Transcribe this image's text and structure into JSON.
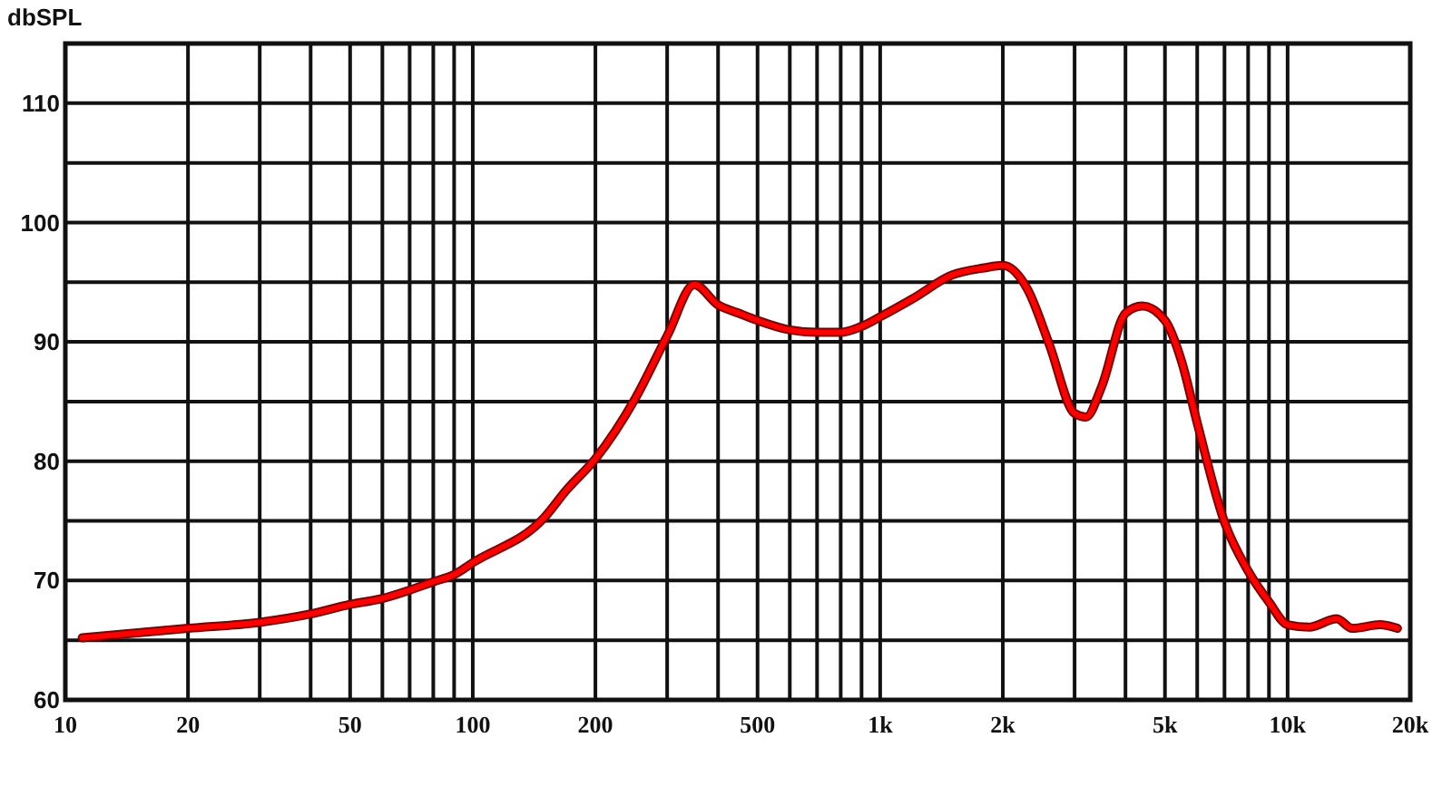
{
  "chart_data": {
    "type": "line",
    "ylabel": "dbSPL",
    "log": "x",
    "grid": true,
    "marker": "none",
    "line_style": "solid",
    "xlim": [
      10,
      20000
    ],
    "ylim": [
      60,
      115
    ],
    "xticks": [
      10,
      20,
      {
        "value": 30,
        "label": null
      },
      {
        "value": 40,
        "label": null
      },
      50,
      {
        "value": 60,
        "label": null
      },
      {
        "value": 70,
        "label": null
      },
      {
        "value": 80,
        "label": null
      },
      {
        "value": 90,
        "label": null
      },
      100,
      200,
      {
        "value": 300,
        "label": null
      },
      {
        "value": 400,
        "label": null
      },
      500,
      {
        "value": 600,
        "label": null
      },
      {
        "value": 700,
        "label": null
      },
      {
        "value": 800,
        "label": null
      },
      {
        "value": 900,
        "label": null
      },
      {
        "value": 1000,
        "label": "1k"
      },
      {
        "value": 2000,
        "label": "2k"
      },
      {
        "value": 3000,
        "label": null
      },
      {
        "value": 4000,
        "label": null
      },
      {
        "value": 5000,
        "label": "5k"
      },
      {
        "value": 6000,
        "label": null
      },
      {
        "value": 7000,
        "label": null
      },
      {
        "value": 8000,
        "label": null
      },
      {
        "value": 9000,
        "label": null
      },
      {
        "value": 10000,
        "label": "10k"
      },
      {
        "value": 20000,
        "label": "20k"
      }
    ],
    "yticks": [
      60,
      {
        "value": 65,
        "label": null
      },
      70,
      {
        "value": 75,
        "label": null
      },
      80,
      {
        "value": 85,
        "label": null
      },
      90,
      {
        "value": 95,
        "label": null
      },
      100,
      {
        "value": 105,
        "label": null
      },
      110,
      {
        "value": 115,
        "label": null
      }
    ],
    "x": [
      11,
      20,
      30,
      40,
      50,
      60,
      70,
      80,
      90,
      100,
      150,
      170,
      200,
      250,
      300,
      350,
      400,
      450,
      500,
      600,
      700,
      800,
      900,
      1000,
      1200,
      1500,
      1800,
      2000,
      2300,
      2600,
      3000,
      3200,
      3500,
      4000,
      4400,
      5000,
      5500,
      6000,
      7000,
      8000,
      9000,
      10000,
      11300,
      13200,
      14400,
      16900,
      18600
    ],
    "series": [
      {
        "color": "#ff0000",
        "values": [
          65.2,
          66.0,
          66.5,
          67.2,
          68.0,
          68.5,
          69.2,
          69.9,
          70.5,
          71.5,
          75.3,
          77.6,
          80.2,
          85.2,
          90.5,
          94.8,
          93.1,
          92.4,
          91.8,
          91.0,
          90.8,
          90.8,
          91.3,
          92.1,
          93.6,
          95.6,
          96.2,
          96.4,
          94.4,
          89.8,
          84.0,
          83.7,
          86.3,
          92.4,
          93.0,
          91.8,
          88.3,
          83.2,
          74.9,
          70.8,
          68.2,
          66.3,
          66.1,
          66.8,
          66.0,
          66.3,
          66.0
        ]
      }
    ]
  }
}
